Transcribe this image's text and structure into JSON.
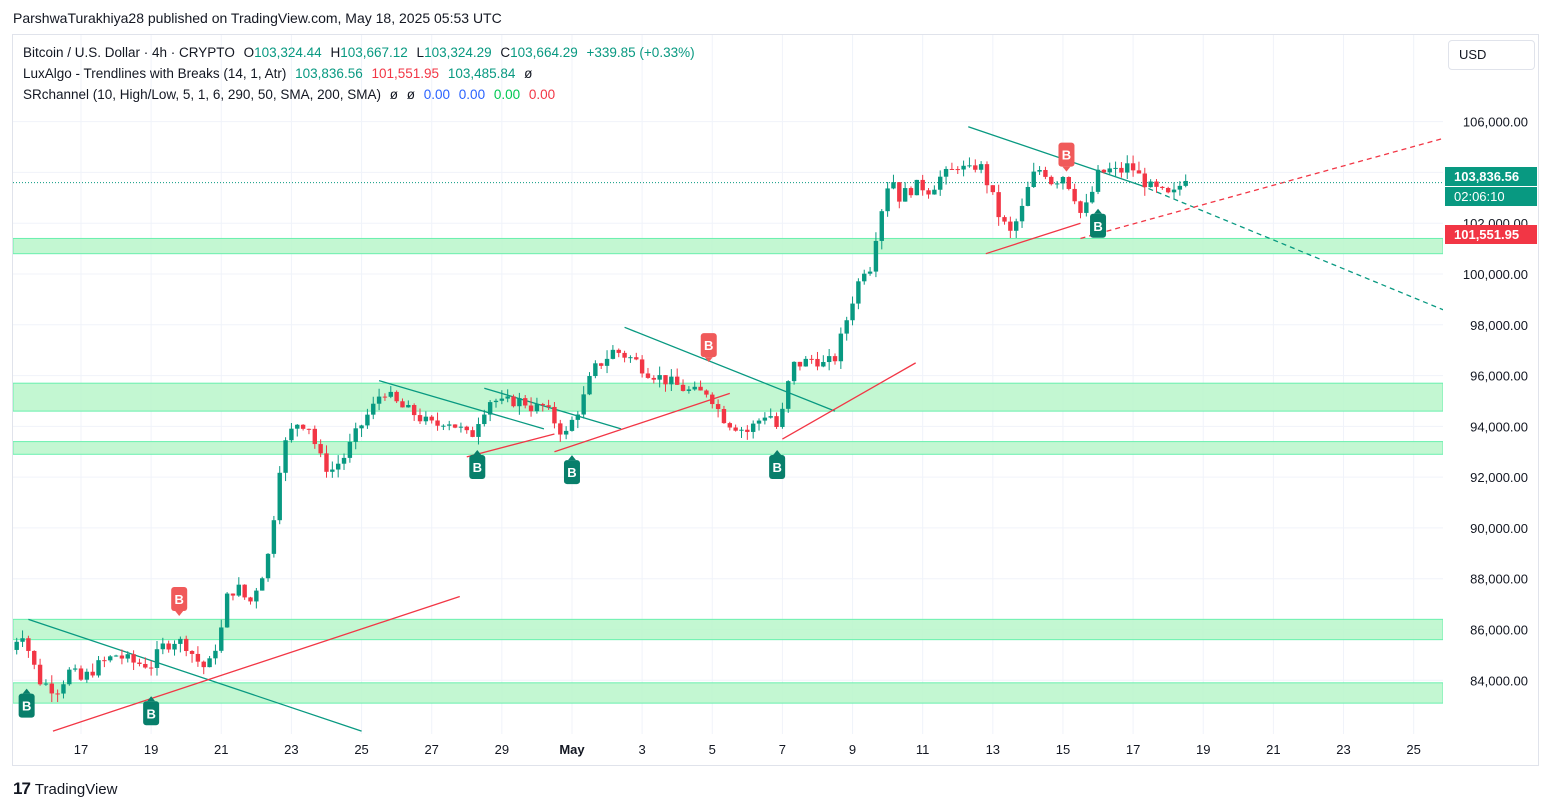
{
  "publisher": "ParshwaTurakhiya28 published on TradingView.com, May 18, 2025 05:53 UTC",
  "legend": {
    "symbol": "Bitcoin / U.S. Dollar · 4h · CRYPTO",
    "ohlc": {
      "o_label": "O",
      "o": "103,324.44",
      "h_label": "H",
      "h": "103,667.12",
      "l_label": "L",
      "l": "103,324.29",
      "c_label": "C",
      "c": "103,664.29",
      "change": "+339.85 (+0.33%)"
    },
    "indicator1": {
      "name": "LuxAlgo - Trendlines with Breaks (14, 1, Atr)",
      "v1": "103,836.56",
      "v2": "101,551.95",
      "v3": "103,485.84",
      "v4": "ø"
    },
    "indicator2": {
      "name": "SRchannel (10, High/Low, 5, 1, 6, 290, 50, SMA, 200, SMA)",
      "v1": "ø",
      "v2": "ø",
      "v3": "0.00",
      "v4": "0.00",
      "v5": "0.00",
      "v6": "0.00"
    }
  },
  "currency": "USD",
  "price_tags": {
    "last_price": "103,836.56",
    "countdown": "02:06:10",
    "lower_trendline": "101,551.95"
  },
  "footer": {
    "logo_mark": "17",
    "brand": "TradingView"
  },
  "colors": {
    "up": "#089981",
    "down": "#f23645",
    "zone_fill": "#b9f6ca",
    "zone_border": "#69f0ae",
    "resistance_line": "#089981",
    "support_line": "#f23645",
    "last_price": "#089981"
  },
  "chart_data": {
    "type": "candlestick",
    "timeframe": "4h",
    "y_ticks": [
      84000,
      86000,
      88000,
      90000,
      92000,
      94000,
      96000,
      98000,
      100000,
      102000,
      106000
    ],
    "y_tick_labels": [
      "84,000.00",
      "86,000.00",
      "88,000.00",
      "90,000.00",
      "92,000.00",
      "94,000.00",
      "96,000.00",
      "98,000.00",
      "100,000.00",
      "102,000.00",
      "106,000.00"
    ],
    "ylim": [
      82000,
      108500
    ],
    "x_ticks": [
      {
        "label": "17",
        "day": 17
      },
      {
        "label": "19",
        "day": 19
      },
      {
        "label": "21",
        "day": 21
      },
      {
        "label": "23",
        "day": 23
      },
      {
        "label": "25",
        "day": 25
      },
      {
        "label": "27",
        "day": 27
      },
      {
        "label": "29",
        "day": 29
      },
      {
        "label": "May",
        "day": 31
      },
      {
        "label": "3",
        "day": 33
      },
      {
        "label": "5",
        "day": 35
      },
      {
        "label": "7",
        "day": 37
      },
      {
        "label": "9",
        "day": 39
      },
      {
        "label": "11",
        "day": 41
      },
      {
        "label": "13",
        "day": 43
      },
      {
        "label": "15",
        "day": 45
      },
      {
        "label": "17",
        "day": 47
      },
      {
        "label": "19",
        "day": 49
      },
      {
        "label": "21",
        "day": 51
      },
      {
        "label": "23",
        "day": 53
      },
      {
        "label": "25",
        "day": 55
      }
    ],
    "xlim": [
      15.0,
      56.0
    ],
    "sr_zones": [
      {
        "low": 100800,
        "high": 101400
      },
      {
        "low": 94600,
        "high": 95700
      },
      {
        "low": 92900,
        "high": 93400
      },
      {
        "low": 85600,
        "high": 86400
      },
      {
        "low": 83100,
        "high": 83900
      }
    ],
    "trendlines": [
      {
        "kind": "resistance",
        "x1": 15.5,
        "y1": 86400,
        "x2": 25.0,
        "y2": 82000
      },
      {
        "kind": "support",
        "x1": 16.2,
        "y1": 82000,
        "x2": 27.8,
        "y2": 87300
      },
      {
        "kind": "resistance",
        "x1": 25.5,
        "y1": 95800,
        "x2": 30.2,
        "y2": 93900
      },
      {
        "kind": "resistance",
        "x1": 28.5,
        "y1": 95500,
        "x2": 32.4,
        "y2": 93900
      },
      {
        "kind": "support",
        "x1": 28.0,
        "y1": 92800,
        "x2": 30.5,
        "y2": 93700
      },
      {
        "kind": "support",
        "x1": 30.5,
        "y1": 93000,
        "x2": 35.5,
        "y2": 95300
      },
      {
        "kind": "resistance",
        "x1": 32.5,
        "y1": 97900,
        "x2": 38.5,
        "y2": 94600
      },
      {
        "kind": "support",
        "x1": 37.0,
        "y1": 93500,
        "x2": 40.8,
        "y2": 96500
      },
      {
        "kind": "resistance",
        "x1": 42.3,
        "y1": 105800,
        "x2": 47.2,
        "y2": 103500
      },
      {
        "kind": "resistance",
        "x1": 47.2,
        "y1": 103500,
        "x2": 56.0,
        "y2": 98500,
        "dashed": true
      },
      {
        "kind": "support",
        "x1": 42.8,
        "y1": 100800,
        "x2": 45.5,
        "y2": 102000
      },
      {
        "kind": "support",
        "x1": 45.5,
        "y1": 101400,
        "x2": 56.0,
        "y2": 105400,
        "dashed": true
      }
    ],
    "breaks": [
      {
        "type": "bull",
        "label": "B",
        "x": 15.45,
        "y": 83000
      },
      {
        "type": "bull",
        "label": "B",
        "x": 19.0,
        "y": 82700
      },
      {
        "type": "bear",
        "label": "B",
        "x": 19.8,
        "y": 87200
      },
      {
        "type": "bull",
        "label": "B",
        "x": 28.3,
        "y": 92400
      },
      {
        "type": "bull",
        "label": "B",
        "x": 31.0,
        "y": 92200
      },
      {
        "type": "bear",
        "label": "B",
        "x": 34.9,
        "y": 97200
      },
      {
        "type": "bull",
        "label": "B",
        "x": 36.85,
        "y": 92400
      },
      {
        "type": "bear",
        "label": "B",
        "x": 45.1,
        "y": 104700
      },
      {
        "type": "bull",
        "label": "B",
        "x": 46.0,
        "y": 101900
      }
    ],
    "candle_path": [
      [
        15.0,
        85200
      ],
      [
        15.3,
        86000
      ],
      [
        15.8,
        84000
      ],
      [
        16.3,
        83600
      ],
      [
        16.7,
        84400
      ],
      [
        17.0,
        84000
      ],
      [
        17.5,
        84600
      ],
      [
        18.0,
        85000
      ],
      [
        18.5,
        84700
      ],
      [
        19.0,
        84600
      ],
      [
        19.3,
        85300
      ],
      [
        19.7,
        85600
      ],
      [
        20.0,
        85400
      ],
      [
        20.3,
        84800
      ],
      [
        20.6,
        84400
      ],
      [
        21.0,
        86000
      ],
      [
        21.2,
        87500
      ],
      [
        21.5,
        87600
      ],
      [
        21.8,
        87000
      ],
      [
        22.1,
        88000
      ],
      [
        22.3,
        88600
      ],
      [
        22.5,
        90500
      ],
      [
        22.7,
        92800
      ],
      [
        22.9,
        93600
      ],
      [
        23.2,
        94200
      ],
      [
        23.5,
        94000
      ],
      [
        23.8,
        92800
      ],
      [
        24.1,
        92200
      ],
      [
        24.5,
        92800
      ],
      [
        24.8,
        93600
      ],
      [
        25.1,
        94300
      ],
      [
        25.4,
        94900
      ],
      [
        25.6,
        95500
      ],
      [
        25.9,
        95000
      ],
      [
        26.2,
        94700
      ],
      [
        26.5,
        94500
      ],
      [
        26.8,
        94200
      ],
      [
        27.1,
        94000
      ],
      [
        27.4,
        94300
      ],
      [
        27.7,
        94000
      ],
      [
        27.9,
        93800
      ],
      [
        28.1,
        93500
      ],
      [
        28.4,
        94500
      ],
      [
        28.7,
        95100
      ],
      [
        29.0,
        94900
      ],
      [
        29.3,
        95000
      ],
      [
        29.6,
        95000
      ],
      [
        29.9,
        94700
      ],
      [
        30.2,
        94800
      ],
      [
        30.5,
        94200
      ],
      [
        30.8,
        93600
      ],
      [
        31.0,
        94200
      ],
      [
        31.3,
        95000
      ],
      [
        31.6,
        96200
      ],
      [
        31.9,
        96600
      ],
      [
        32.2,
        97000
      ],
      [
        32.5,
        96800
      ],
      [
        32.8,
        96600
      ],
      [
        33.1,
        96200
      ],
      [
        33.4,
        96000
      ],
      [
        33.7,
        95800
      ],
      [
        34.0,
        95600
      ],
      [
        34.3,
        95400
      ],
      [
        34.6,
        95300
      ],
      [
        34.9,
        95400
      ],
      [
        35.1,
        94800
      ],
      [
        35.4,
        94200
      ],
      [
        35.7,
        94000
      ],
      [
        36.0,
        93800
      ],
      [
        36.3,
        94200
      ],
      [
        36.6,
        94600
      ],
      [
        36.9,
        93800
      ],
      [
        37.1,
        95300
      ],
      [
        37.3,
        96400
      ],
      [
        37.6,
        96500
      ],
      [
        37.9,
        96700
      ],
      [
        38.2,
        96400
      ],
      [
        38.5,
        96700
      ],
      [
        38.7,
        97600
      ],
      [
        39.0,
        99000
      ],
      [
        39.3,
        100200
      ],
      [
        39.5,
        100300
      ],
      [
        39.7,
        101800
      ],
      [
        39.9,
        103000
      ],
      [
        40.1,
        104000
      ],
      [
        40.3,
        103000
      ],
      [
        40.6,
        103300
      ],
      [
        40.9,
        103500
      ],
      [
        41.2,
        103300
      ],
      [
        41.5,
        103800
      ],
      [
        41.8,
        104000
      ],
      [
        42.0,
        104300
      ],
      [
        42.3,
        104000
      ],
      [
        42.6,
        104400
      ],
      [
        42.9,
        103400
      ],
      [
        43.2,
        102200
      ],
      [
        43.5,
        101600
      ],
      [
        43.8,
        102400
      ],
      [
        44.1,
        103800
      ],
      [
        44.4,
        104200
      ],
      [
        44.7,
        103600
      ],
      [
        45.0,
        103900
      ],
      [
        45.3,
        103200
      ],
      [
        45.5,
        102400
      ],
      [
        45.7,
        102700
      ],
      [
        46.0,
        103900
      ],
      [
        46.3,
        104100
      ],
      [
        46.6,
        104000
      ],
      [
        46.9,
        104300
      ],
      [
        47.2,
        103800
      ],
      [
        47.5,
        103400
      ],
      [
        47.8,
        103200
      ],
      [
        48.1,
        103000
      ],
      [
        48.3,
        103450
      ],
      [
        48.5,
        103660
      ]
    ]
  }
}
